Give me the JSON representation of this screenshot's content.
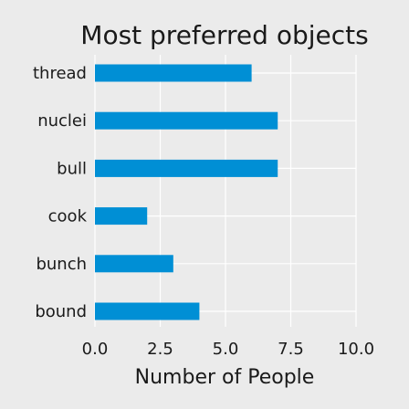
{
  "chart_data": {
    "type": "bar",
    "orientation": "horizontal",
    "title": "Most preferred objects",
    "xlabel": "Number of People",
    "ylabel": "",
    "categories": [
      "thread",
      "nuclei",
      "bull",
      "cook",
      "bunch",
      "bound"
    ],
    "values": [
      6,
      7,
      7,
      2,
      3,
      4
    ],
    "xlim": [
      0,
      10
    ],
    "xticks": [
      "0.0",
      "2.5",
      "5.0",
      "7.5",
      "10.0"
    ],
    "grid": true,
    "bar_color": "#008fd5",
    "background_color": "#ebebeb"
  }
}
